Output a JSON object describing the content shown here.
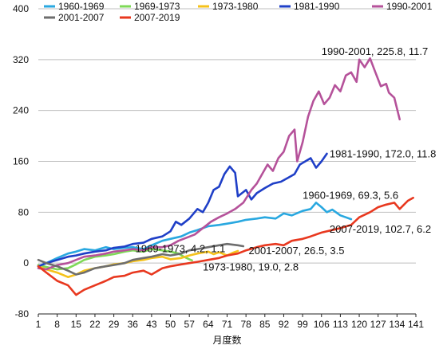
{
  "chart_data": {
    "type": "line",
    "xlabel": "月度数",
    "ylabel": "",
    "xlim": [
      1,
      141
    ],
    "ylim": [
      -80,
      400
    ],
    "x_ticks": [
      1,
      8,
      15,
      22,
      29,
      36,
      43,
      50,
      57,
      64,
      71,
      78,
      85,
      92,
      99,
      106,
      113,
      120,
      127,
      134,
      141
    ],
    "y_ticks": [
      -80,
      0,
      80,
      160,
      240,
      320,
      400
    ],
    "grid": "horizontal",
    "legend_position": "top-left",
    "series": [
      {
        "name": "1960-1969",
        "color": "#29a8e0",
        "points": [
          [
            1,
            -5
          ],
          [
            4,
            0
          ],
          [
            8,
            8
          ],
          [
            12,
            15
          ],
          [
            15,
            18
          ],
          [
            18,
            22
          ],
          [
            22,
            20
          ],
          [
            26,
            25
          ],
          [
            29,
            22
          ],
          [
            33,
            24
          ],
          [
            36,
            25
          ],
          [
            40,
            22
          ],
          [
            43,
            28
          ],
          [
            47,
            35
          ],
          [
            50,
            38
          ],
          [
            54,
            42
          ],
          [
            57,
            48
          ],
          [
            60,
            52
          ],
          [
            64,
            58
          ],
          [
            68,
            60
          ],
          [
            71,
            62
          ],
          [
            75,
            65
          ],
          [
            78,
            68
          ],
          [
            82,
            70
          ],
          [
            85,
            72
          ],
          [
            89,
            70
          ],
          [
            92,
            78
          ],
          [
            95,
            75
          ],
          [
            99,
            82
          ],
          [
            102,
            85
          ],
          [
            104,
            95
          ],
          [
            106,
            88
          ],
          [
            108,
            80
          ],
          [
            110,
            84
          ],
          [
            113,
            75
          ],
          [
            115,
            72
          ],
          [
            117,
            69
          ]
        ]
      },
      {
        "name": "1969-1973",
        "color": "#7ed957",
        "points": [
          [
            1,
            -3
          ],
          [
            4,
            -6
          ],
          [
            8,
            -10
          ],
          [
            12,
            -8
          ],
          [
            15,
            -2
          ],
          [
            18,
            5
          ],
          [
            22,
            10
          ],
          [
            26,
            12
          ],
          [
            29,
            14
          ],
          [
            33,
            18
          ],
          [
            36,
            20
          ],
          [
            40,
            18
          ],
          [
            43,
            22
          ],
          [
            47,
            20
          ],
          [
            50,
            18
          ],
          [
            53,
            15
          ],
          [
            55,
            10
          ],
          [
            57,
            6
          ],
          [
            58,
            4.2
          ]
        ]
      },
      {
        "name": "1973-1980",
        "color": "#f5c21b",
        "points": [
          [
            1,
            -5
          ],
          [
            4,
            -10
          ],
          [
            8,
            -15
          ],
          [
            12,
            -22
          ],
          [
            15,
            -18
          ],
          [
            18,
            -12
          ],
          [
            22,
            -8
          ],
          [
            26,
            -5
          ],
          [
            29,
            -2
          ],
          [
            33,
            0
          ],
          [
            36,
            3
          ],
          [
            40,
            5
          ],
          [
            43,
            8
          ],
          [
            47,
            10
          ],
          [
            50,
            6
          ],
          [
            54,
            8
          ],
          [
            57,
            12
          ],
          [
            60,
            15
          ],
          [
            64,
            18
          ],
          [
            66,
            14
          ],
          [
            68,
            17
          ],
          [
            71,
            12
          ],
          [
            73,
            16
          ],
          [
            75,
            19
          ]
        ]
      },
      {
        "name": "1981-1990",
        "color": "#1f3fc7",
        "points": [
          [
            1,
            -5
          ],
          [
            4,
            0
          ],
          [
            8,
            5
          ],
          [
            12,
            10
          ],
          [
            15,
            12
          ],
          [
            18,
            15
          ],
          [
            22,
            18
          ],
          [
            26,
            20
          ],
          [
            29,
            24
          ],
          [
            33,
            26
          ],
          [
            36,
            30
          ],
          [
            40,
            32
          ],
          [
            43,
            38
          ],
          [
            47,
            42
          ],
          [
            50,
            50
          ],
          [
            52,
            65
          ],
          [
            54,
            60
          ],
          [
            57,
            70
          ],
          [
            60,
            85
          ],
          [
            62,
            80
          ],
          [
            64,
            95
          ],
          [
            66,
            115
          ],
          [
            68,
            120
          ],
          [
            70,
            140
          ],
          [
            72,
            152
          ],
          [
            74,
            142
          ],
          [
            75,
            105
          ],
          [
            78,
            115
          ],
          [
            80,
            100
          ],
          [
            82,
            110
          ],
          [
            85,
            118
          ],
          [
            88,
            125
          ],
          [
            91,
            128
          ],
          [
            94,
            135
          ],
          [
            96,
            140
          ],
          [
            98,
            155
          ],
          [
            100,
            160
          ],
          [
            102,
            165
          ],
          [
            104,
            150
          ],
          [
            106,
            160
          ],
          [
            108,
            172
          ]
        ]
      },
      {
        "name": "1990-2001",
        "color": "#b5529a",
        "points": [
          [
            1,
            -8
          ],
          [
            4,
            -10
          ],
          [
            8,
            -3
          ],
          [
            12,
            0
          ],
          [
            15,
            5
          ],
          [
            18,
            10
          ],
          [
            22,
            12
          ],
          [
            26,
            15
          ],
          [
            29,
            18
          ],
          [
            33,
            20
          ],
          [
            36,
            22
          ],
          [
            40,
            20
          ],
          [
            43,
            25
          ],
          [
            47,
            25
          ],
          [
            50,
            28
          ],
          [
            53,
            35
          ],
          [
            56,
            40
          ],
          [
            59,
            45
          ],
          [
            62,
            55
          ],
          [
            65,
            65
          ],
          [
            68,
            72
          ],
          [
            71,
            78
          ],
          [
            74,
            85
          ],
          [
            77,
            95
          ],
          [
            80,
            115
          ],
          [
            82,
            125
          ],
          [
            84,
            140
          ],
          [
            86,
            155
          ],
          [
            88,
            145
          ],
          [
            90,
            165
          ],
          [
            92,
            175
          ],
          [
            94,
            200
          ],
          [
            96,
            210
          ],
          [
            97,
            160
          ],
          [
            99,
            190
          ],
          [
            101,
            230
          ],
          [
            103,
            255
          ],
          [
            105,
            270
          ],
          [
            107,
            250
          ],
          [
            109,
            260
          ],
          [
            111,
            280
          ],
          [
            113,
            270
          ],
          [
            115,
            295
          ],
          [
            117,
            300
          ],
          [
            119,
            285
          ],
          [
            120,
            320
          ],
          [
            122,
            308
          ],
          [
            124,
            322
          ],
          [
            126,
            300
          ],
          [
            128,
            278
          ],
          [
            130,
            282
          ],
          [
            131,
            268
          ],
          [
            133,
            260
          ],
          [
            135,
            226
          ]
        ]
      },
      {
        "name": "2001-2007",
        "color": "#6e6e6e",
        "points": [
          [
            1,
            5
          ],
          [
            4,
            0
          ],
          [
            8,
            -5
          ],
          [
            12,
            -12
          ],
          [
            15,
            -18
          ],
          [
            18,
            -15
          ],
          [
            22,
            -8
          ],
          [
            26,
            -5
          ],
          [
            29,
            -3
          ],
          [
            33,
            0
          ],
          [
            36,
            5
          ],
          [
            40,
            8
          ],
          [
            43,
            10
          ],
          [
            47,
            14
          ],
          [
            50,
            12
          ],
          [
            54,
            15
          ],
          [
            57,
            20
          ],
          [
            60,
            22
          ],
          [
            64,
            25
          ],
          [
            68,
            28
          ],
          [
            71,
            30
          ],
          [
            75,
            28
          ],
          [
            77,
            26.5
          ]
        ]
      },
      {
        "name": "2007-2019",
        "color": "#e8381f",
        "points": [
          [
            1,
            -5
          ],
          [
            4,
            -15
          ],
          [
            8,
            -28
          ],
          [
            12,
            -35
          ],
          [
            15,
            -50
          ],
          [
            18,
            -42
          ],
          [
            22,
            -35
          ],
          [
            26,
            -28
          ],
          [
            29,
            -22
          ],
          [
            33,
            -20
          ],
          [
            36,
            -15
          ],
          [
            40,
            -12
          ],
          [
            43,
            -18
          ],
          [
            47,
            -8
          ],
          [
            50,
            -5
          ],
          [
            54,
            -2
          ],
          [
            57,
            0
          ],
          [
            60,
            2
          ],
          [
            64,
            5
          ],
          [
            68,
            8
          ],
          [
            71,
            12
          ],
          [
            75,
            15
          ],
          [
            78,
            20
          ],
          [
            82,
            25
          ],
          [
            85,
            28
          ],
          [
            89,
            30
          ],
          [
            92,
            28
          ],
          [
            95,
            35
          ],
          [
            99,
            38
          ],
          [
            102,
            42
          ],
          [
            106,
            48
          ],
          [
            110,
            52
          ],
          [
            113,
            55
          ],
          [
            117,
            60
          ],
          [
            120,
            72
          ],
          [
            124,
            80
          ],
          [
            127,
            88
          ],
          [
            130,
            92
          ],
          [
            133,
            95
          ],
          [
            135,
            85
          ],
          [
            138,
            98
          ],
          [
            140,
            102.7
          ]
        ]
      }
    ],
    "annotations": [
      {
        "text": "1990-2001, 225.8, 11.7",
        "x": 106,
        "y": 327
      },
      {
        "text": "1981-1990, 172.0, 11.8",
        "x": 109,
        "y": 166
      },
      {
        "text": "1960-1969, 69.3, 5.6",
        "x": 99,
        "y": 101
      },
      {
        "text": "2007-2019, 102.7, 6.2",
        "x": 109,
        "y": 48
      },
      {
        "text": "1969-1973, 4.2, 1.1",
        "x": 37,
        "y": 17
      },
      {
        "text": "2001-2007, 26.5, 3.5",
        "x": 79,
        "y": 14
      },
      {
        "text": "1973-1980, 19.0, 2.8",
        "x": 62,
        "y": -12
      }
    ]
  }
}
